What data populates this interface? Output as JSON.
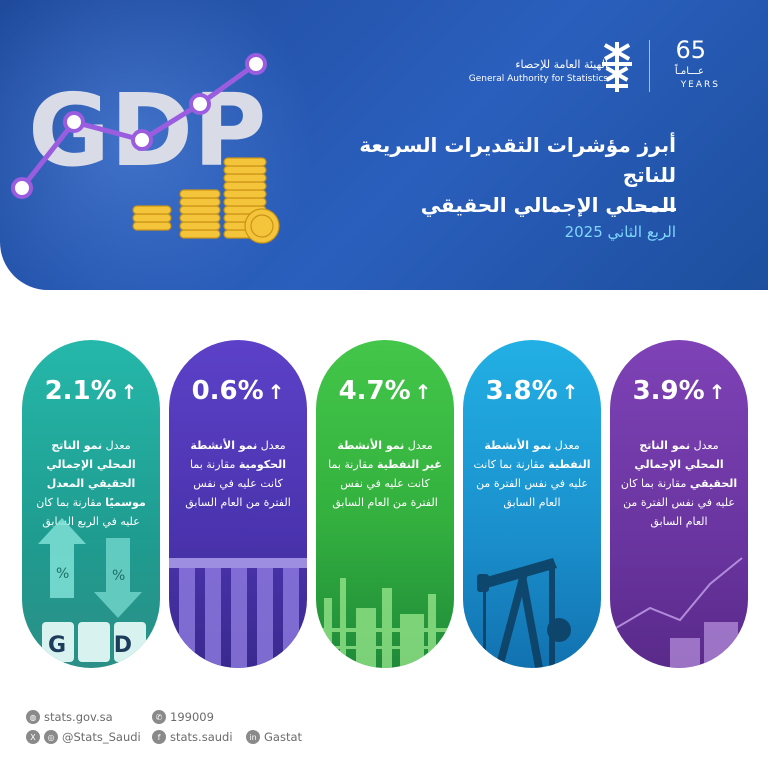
{
  "header": {
    "org_name_ar": "الهيئة العامة للإحصاء",
    "org_name_en": "General Authority for Statistics",
    "years_number": "65",
    "years_ar": "عـــامـاً",
    "years_en": "YEARS",
    "title_line1": "أبرز مؤشرات التقديرات السريعة للناتج",
    "title_line2": "المحلي الإجمالي الحقيقي",
    "period": "الربع الثاني 2025",
    "gdp_art_text": "GDP"
  },
  "cards": [
    {
      "value": "2.1%",
      "arrow": "↑",
      "prefix": "معدل ",
      "bold": "نمو الناتج المحلي الإجمالي الحقيقي المعدل موسميًا",
      "suffix": " مقارنة بما كان عليه في الربع السابق",
      "color_top": "#22b3a6",
      "color_bottom": "#1d8f85",
      "art_text": "G D P"
    },
    {
      "value": "0.6%",
      "arrow": "↑",
      "prefix": "معدل ",
      "bold": "نمو الأنشطة الحكومية",
      "suffix": " مقارنة بما كانت عليه في نفس الفترة من العام السابق",
      "color_top": "#5a3fc2",
      "color_bottom": "#3c2a9a"
    },
    {
      "value": "4.7%",
      "arrow": "↑",
      "prefix": "معدل ",
      "bold": "نمو الأنشطة غير النفطية",
      "suffix": " مقارنة بما كانت عليه في نفس الفترة من العام السابق",
      "color_top": "#3fc24a",
      "color_bottom": "#1f8a3a"
    },
    {
      "value": "3.8%",
      "arrow": "↑",
      "prefix": "معدل ",
      "bold": "نمو الأنشطة النفطية",
      "suffix": " مقارنة بما كانت عليه في نفس الفترة من العام السابق",
      "color_top": "#1ea9de",
      "color_bottom": "#1272b0"
    },
    {
      "value": "3.9%",
      "arrow": "↑",
      "prefix": "معدل ",
      "bold": "نمو الناتج المحلي الإجمالي الحقيقي",
      "suffix": " مقارنة بما كان عليه في نفس الفترة من العام السابق",
      "color_top": "#7a3fb0",
      "color_bottom": "#5a2a8a"
    }
  ],
  "footer": {
    "website": "stats.gov.sa",
    "phone": "199009",
    "twitter_instagram": "@Stats_Saudi",
    "facebook": "stats.saudi",
    "linkedin": "Gastat",
    "icon_web": "globe-icon",
    "icon_phone": "phone-icon",
    "icon_x": "x-icon",
    "icon_instagram": "instagram-icon",
    "icon_facebook": "facebook-icon",
    "icon_linkedin": "linkedin-icon"
  }
}
